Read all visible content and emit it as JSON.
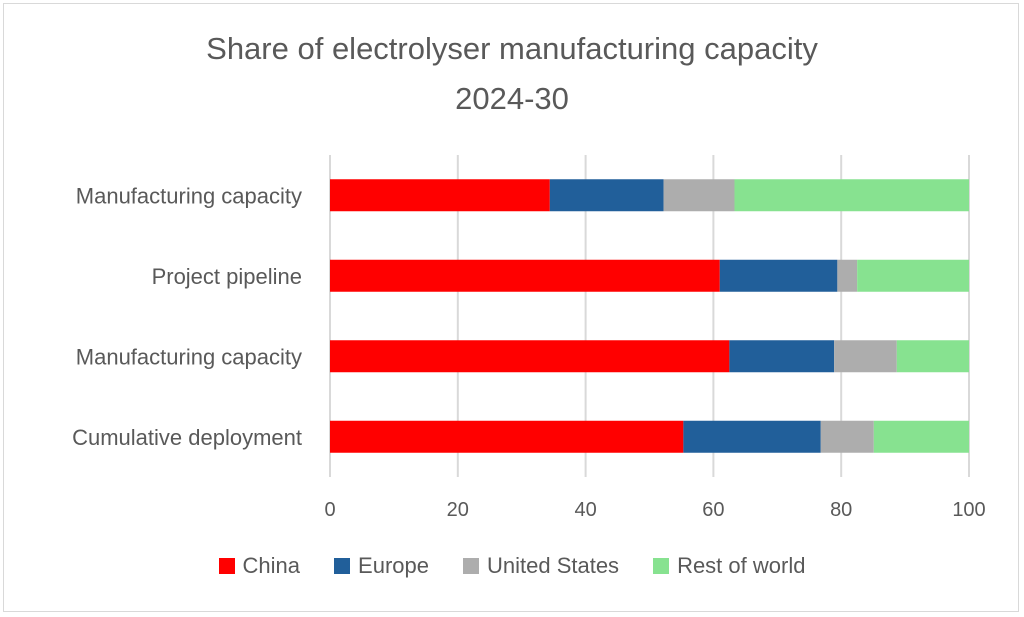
{
  "chart_data": {
    "type": "bar",
    "orientation": "horizontal",
    "stacked": true,
    "title": "Share of electrolyser manufacturing capacity",
    "subtitle": "2024-30",
    "categories": [
      "Manufacturing capacity",
      "Project pipeline",
      "Manufacturing capacity",
      "Cumulative deployment"
    ],
    "series": [
      {
        "name": "China",
        "color": "#ff0000",
        "values": [
          34.4,
          61.0,
          62.5,
          55.3
        ]
      },
      {
        "name": "Europe",
        "color": "#215f9a",
        "values": [
          17.8,
          18.4,
          16.4,
          21.5
        ]
      },
      {
        "name": "United States",
        "color": "#adadad",
        "values": [
          11.1,
          3.1,
          9.8,
          8.3
        ]
      },
      {
        "name": "Rest of world",
        "color": "#87e290",
        "values": [
          36.7,
          17.5,
          11.3,
          14.9
        ]
      }
    ],
    "xlim": [
      0,
      100
    ],
    "xticks": [
      "0",
      "20",
      "40",
      "60",
      "80",
      "100"
    ],
    "grid": true,
    "legend": "bottom"
  }
}
